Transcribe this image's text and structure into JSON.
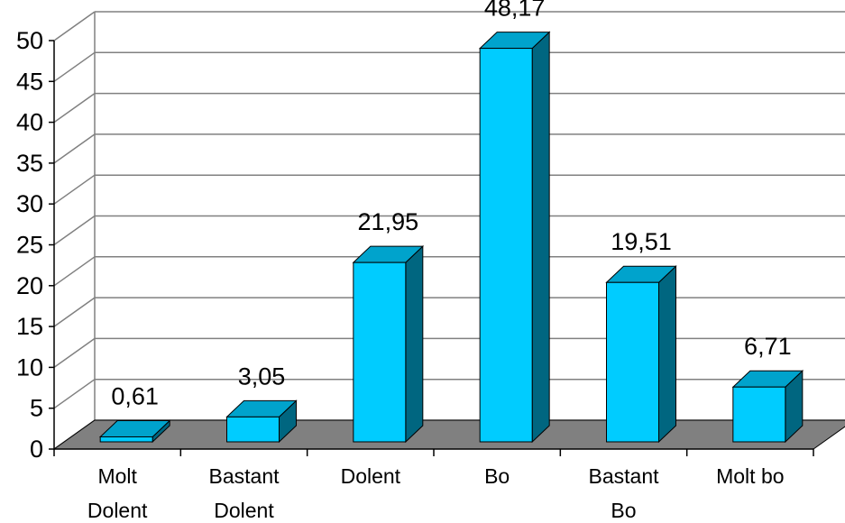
{
  "chart_data": {
    "type": "bar",
    "style": "3d-column",
    "categories": [
      [
        "Molt",
        "Dolent"
      ],
      [
        "Bastant",
        "Dolent"
      ],
      [
        "Dolent"
      ],
      [
        "Bo"
      ],
      [
        "Bastant",
        "Bo"
      ],
      [
        "Molt bo"
      ]
    ],
    "values": [
      0.61,
      3.05,
      21.95,
      48.17,
      19.51,
      6.71
    ],
    "data_labels": [
      "0,61",
      "3,05",
      "21,95",
      "48,17",
      "19,51",
      "6,71"
    ],
    "y_ticks": [
      "0",
      "5",
      "10",
      "15",
      "20",
      "25",
      "30",
      "35",
      "40",
      "45",
      "50"
    ],
    "ylim": [
      0,
      50
    ],
    "title": "",
    "xlabel": "",
    "ylabel": "",
    "grid": true,
    "legend": "none",
    "colors": {
      "bar_front": "#00CCFF",
      "bar_side": "#006680",
      "bar_top": "#00A3CC",
      "floor": "#808080",
      "wall_line": "#808080",
      "grid": "#808080",
      "axis": "#000000"
    }
  }
}
